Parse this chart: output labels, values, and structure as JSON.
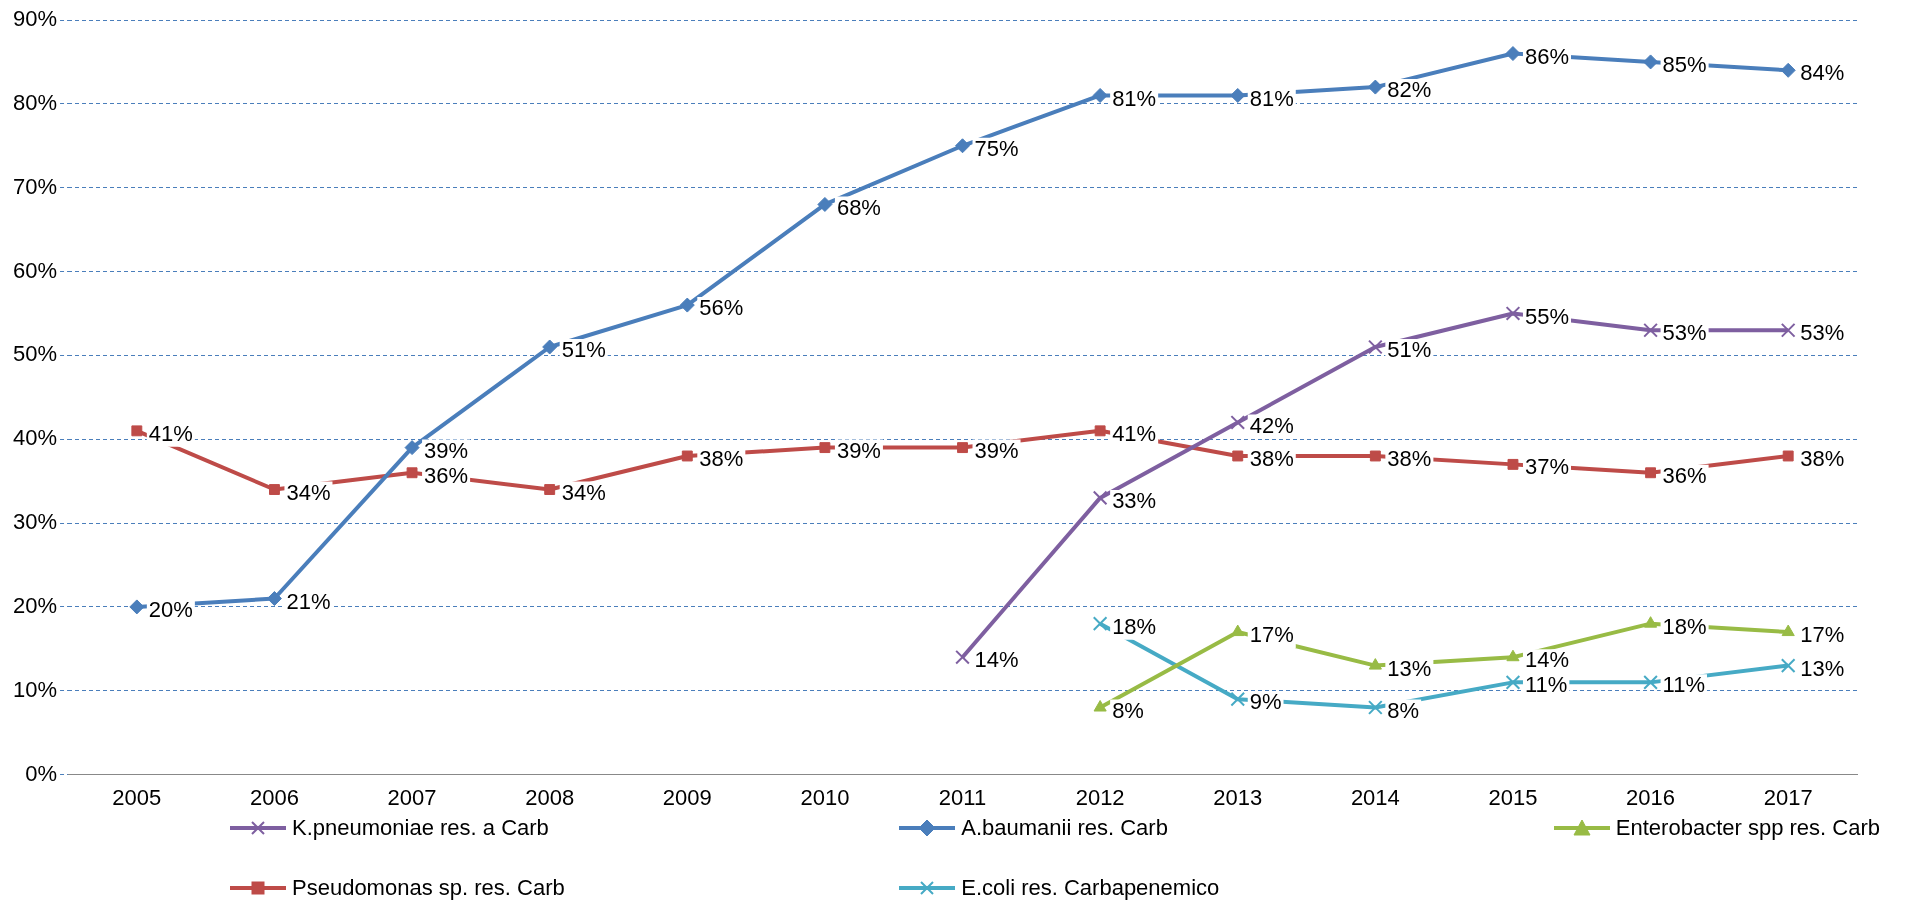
{
  "chart_data": {
    "type": "line",
    "categories": [
      "2005",
      "2006",
      "2007",
      "2008",
      "2009",
      "2010",
      "2011",
      "2012",
      "2013",
      "2014",
      "2015",
      "2016",
      "2017"
    ],
    "ylim": [
      0,
      90
    ],
    "yticks": [
      {
        "value": 0,
        "label": "0%"
      },
      {
        "value": 10,
        "label": "10%"
      },
      {
        "value": 20,
        "label": "20%"
      },
      {
        "value": 30,
        "label": "30%"
      },
      {
        "value": 40,
        "label": "40%"
      },
      {
        "value": 50,
        "label": "50%"
      },
      {
        "value": 60,
        "label": "60%"
      },
      {
        "value": 70,
        "label": "70%"
      },
      {
        "value": 80,
        "label": "80%"
      },
      {
        "value": 90,
        "label": "90%"
      }
    ],
    "grid": "y",
    "legend": "bottom",
    "line_style": "solid",
    "series": [
      {
        "name": "K.pneumoniae res. a Carb",
        "color": "#7e5fa0",
        "marker": "cross",
        "values": [
          null,
          null,
          null,
          null,
          null,
          null,
          14,
          33,
          42,
          51,
          55,
          53,
          53
        ],
        "value_labels": [
          null,
          null,
          null,
          null,
          null,
          null,
          "14%",
          "33%",
          "42%",
          "51%",
          "55%",
          "53%",
          "53%"
        ]
      },
      {
        "name": "A.baumanii res. Carb",
        "color": "#4a7ebb",
        "marker": "diamond",
        "values": [
          20,
          21,
          39,
          51,
          56,
          68,
          75,
          81,
          81,
          82,
          86,
          85,
          84
        ],
        "value_labels": [
          "20%",
          "21%",
          "39%",
          "51%",
          "56%",
          "68%",
          "75%",
          "81%",
          "81%",
          "82%",
          "86%",
          "85%",
          "84%"
        ]
      },
      {
        "name": "Enterobacter spp res. Carb",
        "color": "#98bb45",
        "marker": "triangle",
        "values": [
          null,
          null,
          null,
          null,
          null,
          null,
          null,
          8,
          17,
          13,
          14,
          18,
          17
        ],
        "value_labels": [
          null,
          null,
          null,
          null,
          null,
          null,
          null,
          "8%",
          "17%",
          "13%",
          "14%",
          "18%",
          "17%"
        ]
      },
      {
        "name": "Pseudomonas sp. res. Carb",
        "color": "#be4b48",
        "marker": "square",
        "values": [
          41,
          34,
          36,
          34,
          38,
          39,
          39,
          41,
          38,
          38,
          37,
          36,
          38
        ],
        "value_labels": [
          "41%",
          "34%",
          "36%",
          "34%",
          "38%",
          "39%",
          "39%",
          "41%",
          "38%",
          "38%",
          "37%",
          "36%",
          "38%"
        ]
      },
      {
        "name": "E.coli res. Carbapenemico",
        "color": "#46aac5",
        "marker": "cross",
        "values": [
          null,
          null,
          null,
          null,
          null,
          null,
          null,
          18,
          9,
          8,
          11,
          11,
          13
        ],
        "value_labels": [
          null,
          null,
          null,
          null,
          null,
          null,
          null,
          "18%",
          "9%",
          "8%",
          "11%",
          "11%",
          "13%"
        ]
      }
    ]
  }
}
